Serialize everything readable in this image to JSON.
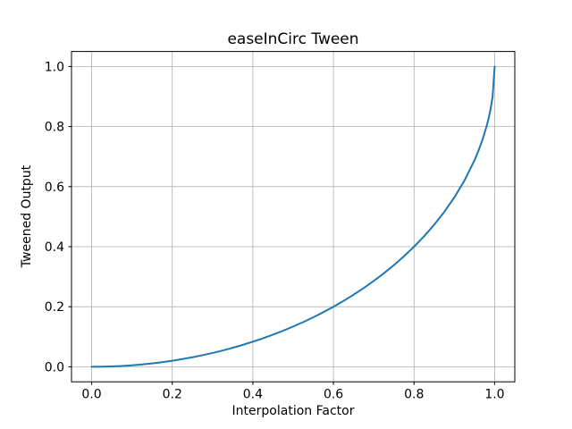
{
  "chart_data": {
    "type": "line",
    "title": "easeInCirc Tween",
    "xlabel": "Interpolation Factor",
    "ylabel": "Tweened Output",
    "xlim": [
      -0.05,
      1.05
    ],
    "ylim": [
      -0.05,
      1.05
    ],
    "grid": true,
    "legend": "none",
    "series": [
      {
        "name": "easeInCirc",
        "color": "#1f77b4",
        "x": [
          0,
          0.025,
          0.05,
          0.075,
          0.1,
          0.125,
          0.15,
          0.175,
          0.2,
          0.225,
          0.25,
          0.275,
          0.3,
          0.325,
          0.35,
          0.375,
          0.4,
          0.425,
          0.45,
          0.475,
          0.5,
          0.525,
          0.55,
          0.575,
          0.6,
          0.625,
          0.65,
          0.675,
          0.7,
          0.725,
          0.75,
          0.775,
          0.8,
          0.825,
          0.85,
          0.875,
          0.9,
          0.925,
          0.95,
          0.96,
          0.97,
          0.98,
          0.985,
          0.99,
          0.995,
          1.0
        ],
        "y": [
          0,
          0.000313,
          0.001251,
          0.002817,
          0.005013,
          0.007843,
          0.011314,
          0.015432,
          0.020204,
          0.025641,
          0.031754,
          0.038556,
          0.046061,
          0.054286,
          0.063254,
          0.072975,
          0.083485,
          0.094807,
          0.106972,
          0.120014,
          0.133975,
          0.148898,
          0.164836,
          0.181846,
          0.2,
          0.219375,
          0.240074,
          0.262182,
          0.285857,
          0.311251,
          0.338562,
          0.368039,
          0.4,
          0.434867,
          0.473219,
          0.515877,
          0.56411,
          0.620033,
          0.687751,
          0.72,
          0.756889,
          0.801002,
          0.827446,
          0.858933,
          0.900125,
          1.0
        ]
      }
    ],
    "xticks": [
      0.0,
      0.2,
      0.4,
      0.6,
      0.8,
      1.0
    ],
    "xtick_labels": [
      "0.0",
      "0.2",
      "0.4",
      "0.6",
      "0.8",
      "1.0"
    ],
    "yticks": [
      0.0,
      0.2,
      0.4,
      0.6,
      0.8,
      1.0
    ],
    "ytick_labels": [
      "0.0",
      "0.2",
      "0.4",
      "0.6",
      "0.8",
      "1.0"
    ],
    "colors": {
      "line": "#1f77b4",
      "grid": "#b0b0b0",
      "spine": "#000000",
      "background": "#ffffff",
      "text": "#000000"
    }
  }
}
